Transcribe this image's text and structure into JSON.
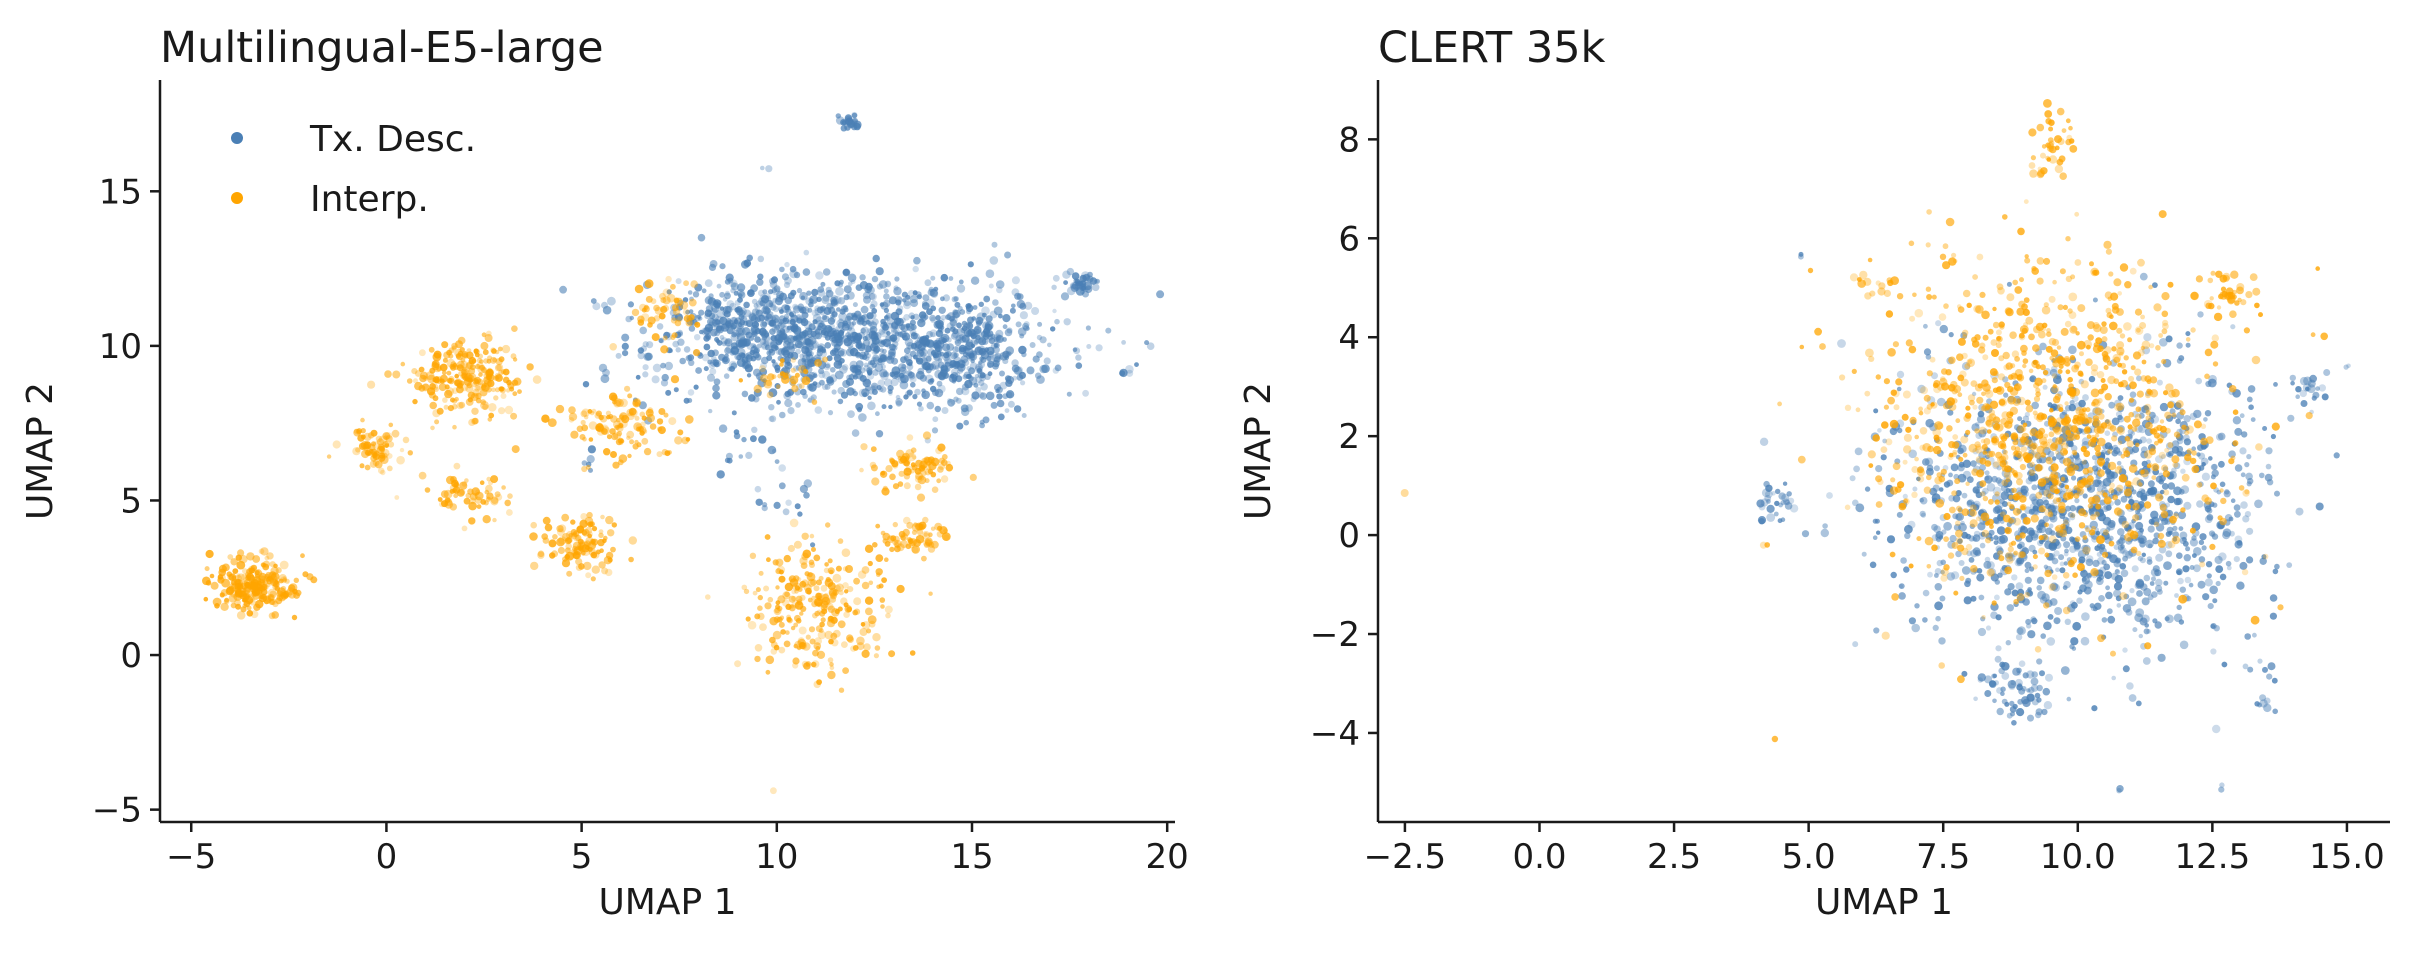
{
  "chart_data": [
    {
      "type": "scatter",
      "title": "Multilingual-E5-large",
      "xlabel": "UMAP 1",
      "ylabel": "UMAP 2",
      "xlim": [
        -5.8,
        20.2
      ],
      "ylim": [
        -5.4,
        18.6
      ],
      "xticks": [
        -5,
        0,
        5,
        10,
        15,
        20
      ],
      "xtick_labels": [
        "−5",
        "0",
        "5",
        "10",
        "15",
        "20"
      ],
      "yticks": [
        -5,
        0,
        5,
        10,
        15
      ],
      "ytick_labels": [
        "−5",
        "0",
        "5",
        "10",
        "15"
      ],
      "grid": false,
      "legend": {
        "placement": "top-left",
        "entries": [
          "Tx. Desc.",
          "Interp."
        ]
      },
      "series": [
        {
          "name": "Tx. Desc.",
          "color": "#4a7fb5",
          "clusters": [
            {
              "cx": 12.0,
              "cy": 10.2,
              "sx": 2.6,
              "sy": 1.1,
              "n": 1100
            },
            {
              "cx": 9.5,
              "cy": 10.8,
              "sx": 1.0,
              "sy": 0.7,
              "n": 250
            },
            {
              "cx": 14.8,
              "cy": 9.5,
              "sx": 1.0,
              "sy": 0.9,
              "n": 200
            },
            {
              "cx": 17.8,
              "cy": 12.0,
              "sx": 0.25,
              "sy": 0.2,
              "n": 40
            },
            {
              "cx": 11.9,
              "cy": 17.2,
              "sx": 0.15,
              "sy": 0.15,
              "n": 25
            },
            {
              "cx": 9.5,
              "cy": 6.5,
              "sx": 0.5,
              "sy": 0.7,
              "n": 20
            },
            {
              "cx": 10.2,
              "cy": 4.8,
              "sx": 0.3,
              "sy": 0.4,
              "n": 12
            },
            {
              "cx": 19.0,
              "cy": 9.2,
              "sx": 0.1,
              "sy": 0.1,
              "n": 4
            },
            {
              "cx": 5.2,
              "cy": 6.2,
              "sx": 0.15,
              "sy": 0.15,
              "n": 5
            },
            {
              "cx": 9.7,
              "cy": 15.7,
              "sx": 0.05,
              "sy": 0.05,
              "n": 2
            }
          ]
        },
        {
          "name": "Interp.",
          "color": "#ffa500",
          "clusters": [
            {
              "cx": -3.3,
              "cy": 2.2,
              "sx": 0.6,
              "sy": 0.45,
              "n": 220
            },
            {
              "cx": 2.0,
              "cy": 9.0,
              "sx": 0.7,
              "sy": 0.55,
              "n": 240
            },
            {
              "cx": -0.3,
              "cy": 6.7,
              "sx": 0.35,
              "sy": 0.3,
              "n": 70
            },
            {
              "cx": 2.2,
              "cy": 5.2,
              "sx": 0.55,
              "sy": 0.35,
              "n": 60
            },
            {
              "cx": 5.0,
              "cy": 3.6,
              "sx": 0.5,
              "sy": 0.45,
              "n": 110
            },
            {
              "cx": 6.2,
              "cy": 7.4,
              "sx": 0.8,
              "sy": 0.5,
              "n": 120
            },
            {
              "cx": 11.0,
              "cy": 1.6,
              "sx": 0.9,
              "sy": 1.1,
              "n": 260
            },
            {
              "cx": 13.5,
              "cy": 3.8,
              "sx": 0.5,
              "sy": 0.3,
              "n": 60
            },
            {
              "cx": 13.5,
              "cy": 6.1,
              "sx": 0.5,
              "sy": 0.4,
              "n": 80
            },
            {
              "cx": 7.2,
              "cy": 11.2,
              "sx": 0.5,
              "sy": 0.6,
              "n": 50
            },
            {
              "cx": 10.2,
              "cy": 9.0,
              "sx": 0.4,
              "sy": 0.3,
              "n": 30
            },
            {
              "cx": 9.9,
              "cy": -4.3,
              "sx": 0.05,
              "sy": 0.05,
              "n": 1
            }
          ]
        }
      ]
    },
    {
      "type": "scatter",
      "title": "CLERT 35k",
      "xlabel": "UMAP 1",
      "ylabel": "UMAP 2",
      "xlim": [
        -3.0,
        15.8
      ],
      "ylim": [
        -5.8,
        9.2
      ],
      "xticks": [
        -2.5,
        0.0,
        2.5,
        5.0,
        7.5,
        10.0,
        12.5,
        15.0
      ],
      "xtick_labels": [
        "−2.5",
        "0.0",
        "2.5",
        "5.0",
        "7.5",
        "10.0",
        "12.5",
        "15.0"
      ],
      "yticks": [
        -4,
        -2,
        0,
        2,
        4,
        6,
        8
      ],
      "ytick_labels": [
        "−4",
        "−2",
        "0",
        "2",
        "4",
        "6",
        "8"
      ],
      "grid": false,
      "series": [
        {
          "name": "Tx. Desc.",
          "color": "#4a7fb5",
          "clusters": [
            {
              "cx": 10.0,
              "cy": 0.6,
              "sx": 1.7,
              "sy": 1.4,
              "n": 1300
            },
            {
              "cx": 8.9,
              "cy": -3.1,
              "sx": 0.35,
              "sy": 0.3,
              "n": 60
            },
            {
              "cx": 4.4,
              "cy": 0.6,
              "sx": 0.2,
              "sy": 0.2,
              "n": 30
            },
            {
              "cx": 14.3,
              "cy": 2.9,
              "sx": 0.2,
              "sy": 0.2,
              "n": 20
            },
            {
              "cx": 13.4,
              "cy": -3.0,
              "sx": 0.2,
              "sy": 0.3,
              "n": 15
            },
            {
              "cx": 4.9,
              "cy": 5.7,
              "sx": 0.05,
              "sy": 0.05,
              "n": 2
            },
            {
              "cx": 10.8,
              "cy": -5.2,
              "sx": 0.05,
              "sy": 0.05,
              "n": 2
            },
            {
              "cx": 12.7,
              "cy": -5.1,
              "sx": 0.05,
              "sy": 0.05,
              "n": 2
            },
            {
              "cx": 15.0,
              "cy": 3.5,
              "sx": 0.05,
              "sy": 0.05,
              "n": 2
            }
          ]
        },
        {
          "name": "Interp.",
          "color": "#ffa500",
          "clusters": [
            {
              "cx": 9.4,
              "cy": 2.3,
              "sx": 1.6,
              "sy": 1.6,
              "n": 1000
            },
            {
              "cx": 9.5,
              "cy": 7.8,
              "sx": 0.2,
              "sy": 0.4,
              "n": 40
            },
            {
              "cx": 12.8,
              "cy": 4.9,
              "sx": 0.3,
              "sy": 0.2,
              "n": 40
            },
            {
              "cx": 6.2,
              "cy": 5.1,
              "sx": 0.2,
              "sy": 0.15,
              "n": 15
            },
            {
              "cx": -2.5,
              "cy": 0.8,
              "sx": 0.03,
              "sy": 0.03,
              "n": 1
            },
            {
              "cx": 4.4,
              "cy": -4.1,
              "sx": 0.03,
              "sy": 0.03,
              "n": 1
            },
            {
              "cx": 14.6,
              "cy": 4.0,
              "sx": 0.05,
              "sy": 0.05,
              "n": 1
            }
          ]
        }
      ]
    }
  ]
}
